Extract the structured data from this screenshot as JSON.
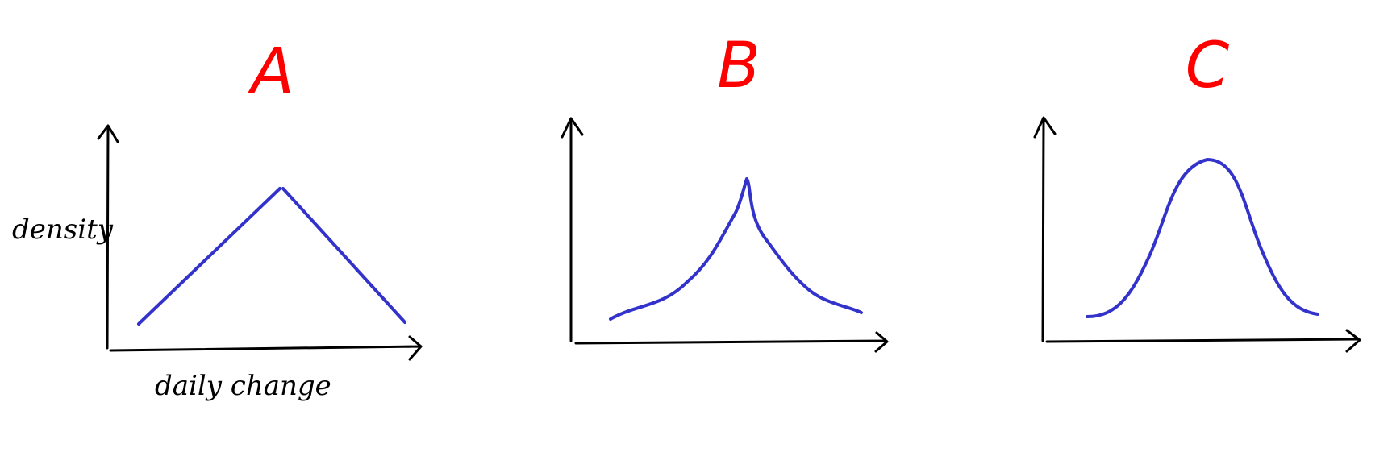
{
  "colors": {
    "title": "#ff0000",
    "curve": "#3333cc",
    "axis": "#000000",
    "background": "#ffffff"
  },
  "axis_labels": {
    "y": "density",
    "x": "daily change"
  },
  "panels": [
    {
      "label": "A",
      "shape": "triangle"
    },
    {
      "label": "B",
      "shape": "sharp-peak"
    },
    {
      "label": "C",
      "shape": "bell"
    }
  ]
}
